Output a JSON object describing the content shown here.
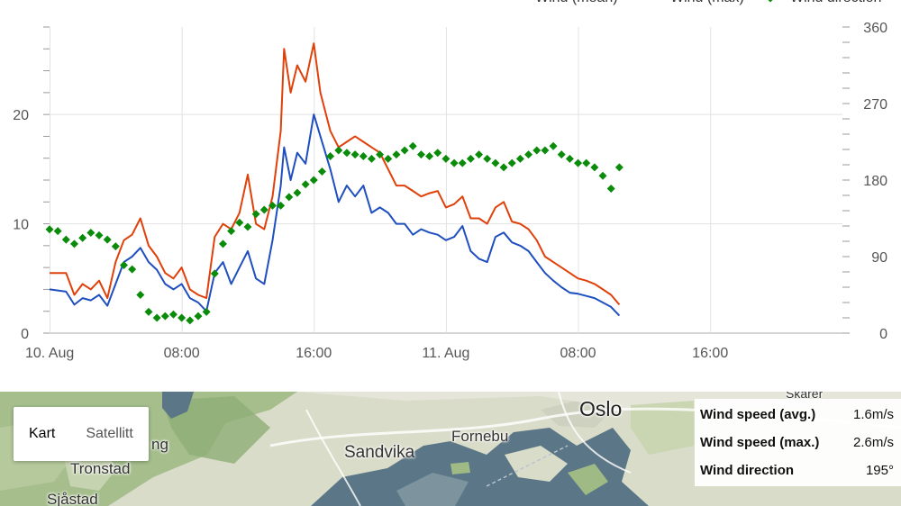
{
  "chart_data": {
    "type": "line",
    "legend": [
      "Wind (mean)",
      "Wind (max)",
      "Wind direction"
    ],
    "legend_placement": "top-right",
    "x_ticks": [
      "10. Aug",
      "08:00",
      "16:00",
      "11. Aug",
      "08:00",
      "16:00"
    ],
    "y_left_ticks": [
      "0",
      "10",
      "20"
    ],
    "y_right_ticks": [
      "0",
      "90",
      "180",
      "270",
      "360"
    ],
    "y_left_range": [
      0,
      28
    ],
    "y_right_range": [
      0,
      360
    ],
    "x_range_hours": [
      0,
      48
    ],
    "grid": true,
    "series": [
      {
        "name": "Wind (mean)",
        "color": "#1f4fbf",
        "axis": "left",
        "x": [
          0,
          1,
          1.5,
          2,
          2.5,
          3,
          3.5,
          4,
          4.5,
          5,
          5.5,
          6,
          6.5,
          7,
          7.5,
          8,
          8.5,
          9,
          9.5,
          10,
          10.5,
          11,
          11.5,
          12,
          12.5,
          13,
          13.5,
          14,
          14.2,
          14.6,
          15,
          15.5,
          16,
          16.4,
          17,
          17.5,
          18,
          18.5,
          19,
          19.5,
          20,
          20.5,
          21,
          21.5,
          22,
          22.5,
          23,
          23.5,
          24,
          24.5,
          25,
          25.5,
          26,
          26.5,
          27,
          27.5,
          28,
          28.5,
          29,
          29.5,
          30,
          30.5,
          31,
          31.5,
          32,
          32.5,
          33,
          33.5,
          34,
          34.5
        ],
        "values": [
          4,
          3.8,
          2.6,
          3.2,
          3,
          3.5,
          2.5,
          4.5,
          6.5,
          7,
          7.8,
          6.5,
          5.8,
          4.5,
          4,
          4.5,
          3.2,
          2.8,
          2,
          5.5,
          6.5,
          4.5,
          6,
          7.5,
          5,
          4.5,
          8.5,
          13.5,
          17,
          14,
          16.5,
          15.5,
          20,
          18,
          15,
          12,
          13.5,
          12.5,
          13.5,
          11,
          11.5,
          11,
          10,
          10,
          9,
          9.5,
          9.2,
          9,
          8.5,
          8.8,
          9.8,
          7.5,
          6.8,
          6.5,
          8.8,
          9.2,
          8.3,
          8,
          7.5,
          6.5,
          5.5,
          4.8,
          4.2,
          3.7,
          3.6,
          3.4,
          3.2,
          2.8,
          2.4,
          1.6
        ]
      },
      {
        "name": "Wind (max)",
        "color": "#e0400a",
        "axis": "left",
        "x": [
          0,
          1,
          1.5,
          2,
          2.5,
          3,
          3.5,
          4,
          4.5,
          5,
          5.5,
          6,
          6.5,
          7,
          7.5,
          8,
          8.5,
          9,
          9.5,
          10,
          10.5,
          11,
          11.5,
          12,
          12.5,
          13,
          13.5,
          14,
          14.2,
          14.6,
          15,
          15.5,
          16,
          16.4,
          17,
          17.5,
          18,
          18.5,
          19,
          19.5,
          20,
          20.5,
          21,
          21.5,
          22,
          22.5,
          23,
          23.5,
          24,
          24.5,
          25,
          25.5,
          26,
          26.5,
          27,
          27.5,
          28,
          28.5,
          29,
          29.5,
          30,
          30.5,
          31,
          31.5,
          32,
          32.5,
          33,
          33.5,
          34,
          34.5
        ],
        "values": [
          5.5,
          5.5,
          3.5,
          4.5,
          4,
          4.8,
          3.2,
          6.5,
          8.5,
          9,
          10.5,
          8,
          7,
          5.5,
          5,
          6,
          4,
          3.5,
          3.2,
          8.8,
          10,
          9.5,
          11,
          14.5,
          10,
          9.5,
          12.5,
          18.5,
          26,
          22,
          24.5,
          23,
          26.5,
          22,
          18.5,
          17,
          17.5,
          18,
          17.5,
          17,
          16.5,
          15,
          13.5,
          13.5,
          13,
          12.5,
          12.8,
          13,
          11.5,
          11.8,
          12.5,
          10.5,
          10.5,
          10,
          11.5,
          12,
          10.2,
          10,
          9.5,
          8.5,
          7,
          6.5,
          6,
          5.5,
          5,
          4.8,
          4.5,
          4,
          3.5,
          2.6
        ]
      },
      {
        "name": "Wind direction",
        "color": "#0a8c0a",
        "axis": "right",
        "x": [
          0,
          0.5,
          1,
          1.5,
          2,
          2.5,
          3,
          3.5,
          4,
          4.5,
          5,
          5.5,
          6,
          6.5,
          7,
          7.5,
          8,
          8.5,
          9,
          9.5,
          10,
          10.5,
          11,
          11.5,
          12,
          12.5,
          13,
          13.5,
          14,
          14.5,
          15,
          15.5,
          16,
          16.5,
          17,
          17.5,
          18,
          18.5,
          19,
          19.5,
          20,
          20.5,
          21,
          21.5,
          22,
          22.5,
          23,
          23.5,
          24,
          24.5,
          25,
          25.5,
          26,
          26.5,
          27,
          27.5,
          28,
          28.5,
          29,
          29.5,
          30,
          30.5,
          31,
          31.5,
          32,
          32.5,
          33,
          33.5,
          34,
          34.5
        ],
        "values": [
          122,
          120,
          110,
          105,
          112,
          118,
          115,
          110,
          102,
          80,
          75,
          45,
          25,
          18,
          20,
          22,
          18,
          15,
          20,
          25,
          70,
          105,
          120,
          130,
          125,
          140,
          145,
          150,
          150,
          160,
          165,
          175,
          180,
          190,
          208,
          215,
          212,
          210,
          208,
          205,
          210,
          205,
          210,
          215,
          220,
          210,
          208,
          212,
          205,
          200,
          200,
          205,
          210,
          205,
          200,
          195,
          200,
          205,
          210,
          215,
          215,
          220,
          210,
          205,
          200,
          200,
          195,
          185,
          170,
          195
        ]
      }
    ]
  },
  "map": {
    "toggle": {
      "map_label": "Kart",
      "satellite_label": "Satellitt"
    },
    "places": {
      "tronstad": "Tronstad",
      "sjastad": "Sjåstad",
      "sandvika": "Sandvika",
      "fornebu": "Fornebu",
      "oslo": "Oslo",
      "skarer": "Skårer",
      "partial_left": "ng"
    },
    "colors": {
      "water": "#5b7686",
      "land": "#d9dcc9",
      "forest": "#9fba85"
    }
  },
  "info": {
    "rows": [
      {
        "label": "Wind speed (avg.)",
        "value": "1.6m/s"
      },
      {
        "label": "Wind speed (max.)",
        "value": "2.6m/s"
      },
      {
        "label": "Wind direction",
        "value": "195°"
      }
    ]
  }
}
